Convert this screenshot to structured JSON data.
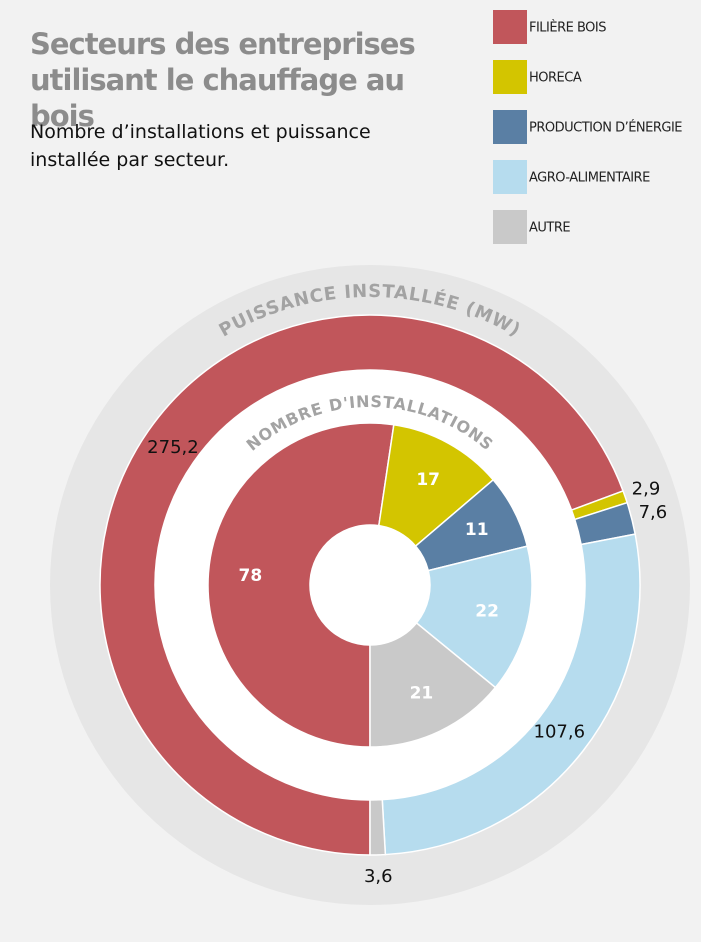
{
  "chart_data": {
    "type": "donut",
    "title": "Secteurs des entreprises utilisant le chauffage au bois",
    "subtitle": "Nombre d’installations et puissance installée par secteur.",
    "categories": [
      "FILIÈRE BOIS",
      "HORECA",
      "PRODUCTION D’ÉNERGIE",
      "AGRO-ALIMENTAIRE",
      "AUTRE"
    ],
    "colors": [
      "#c1565b",
      "#d3c500",
      "#5a7fa4",
      "#b6dcee",
      "#c9c9c9"
    ],
    "series": [
      {
        "name": "PUISSANCE INSTALLÉE (MW)",
        "values": [
          275.2,
          2.9,
          7.6,
          107.6,
          3.6
        ],
        "value_labels": [
          "275,2",
          "2,9",
          "7,6",
          "107,6",
          "3,6"
        ]
      },
      {
        "name": "NOMBRE D'INSTALLATIONS",
        "values": [
          78,
          17,
          11,
          22,
          21
        ]
      }
    ]
  }
}
